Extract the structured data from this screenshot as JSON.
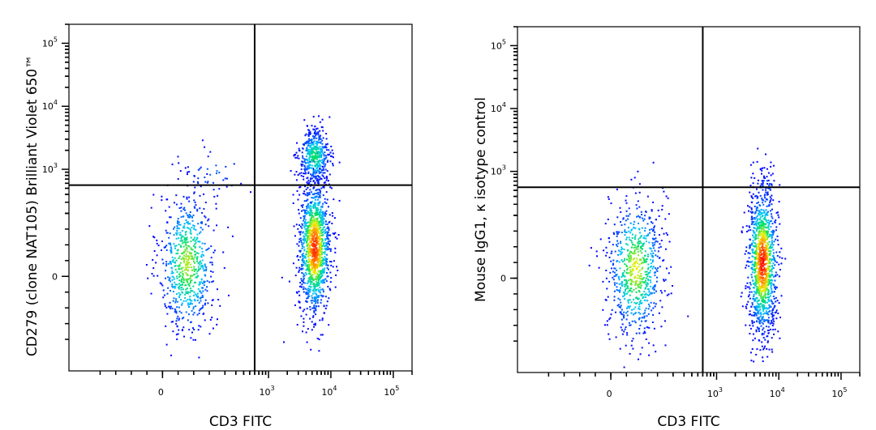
{
  "chart_data": [
    {
      "type": "scatter",
      "subtype": "flow-cytometry-density-dot-plot",
      "xlabel": "CD3 FITC",
      "ylabel": "CD279 (clone NAT105) Brilliant Violet 650™",
      "x_scale": "biexponential",
      "y_scale": "biexponential",
      "xlim": [
        -300,
        200000
      ],
      "ylim": [
        -300,
        200000
      ],
      "x_ticks": [
        {
          "value": 0,
          "base": "0",
          "exp": ""
        },
        {
          "value": 1000,
          "base": "10",
          "exp": "3"
        },
        {
          "value": 10000,
          "base": "10",
          "exp": "4"
        },
        {
          "value": 100000,
          "base": "10",
          "exp": "5"
        }
      ],
      "y_ticks": [
        {
          "value": 0,
          "base": "0",
          "exp": ""
        },
        {
          "value": 1000,
          "base": "10",
          "exp": "3"
        },
        {
          "value": 10000,
          "base": "10",
          "exp": "4"
        },
        {
          "value": 100000,
          "base": "10",
          "exp": "5"
        }
      ],
      "quadrant_gate": {
        "x": 600,
        "y": 560
      },
      "grid": false,
      "legend": "none",
      "color_scale": [
        "#0000ff",
        "#00c8ff",
        "#00e060",
        "#f0f000",
        "#ff8000",
        "#ff0000"
      ],
      "populations": [
        {
          "x_center": 80,
          "x_spread": 60,
          "y_center": 40,
          "y_spread": 150,
          "count": 700,
          "peak": 0.55
        },
        {
          "x_center": 5500,
          "x_spread": 2600,
          "y_center": 90,
          "y_spread": 200,
          "count": 1300,
          "peak": 0.95
        },
        {
          "x_center": 5500,
          "x_spread": 2600,
          "y_center": 1600,
          "y_spread": 1600,
          "count": 450,
          "peak": 0.4
        },
        {
          "x_center": 160,
          "x_spread": 120,
          "y_center": 900,
          "y_spread": 800,
          "count": 45,
          "peak": 0.1
        }
      ]
    },
    {
      "type": "scatter",
      "subtype": "flow-cytometry-density-dot-plot",
      "xlabel": "CD3 FITC",
      "ylabel": "Mouse IgG1, κ isotype control",
      "x_scale": "biexponential",
      "y_scale": "biexponential",
      "xlim": [
        -300,
        200000
      ],
      "ylim": [
        -300,
        200000
      ],
      "x_ticks": [
        {
          "value": 0,
          "base": "0",
          "exp": ""
        },
        {
          "value": 1000,
          "base": "10",
          "exp": "3"
        },
        {
          "value": 10000,
          "base": "10",
          "exp": "4"
        },
        {
          "value": 100000,
          "base": "10",
          "exp": "5"
        }
      ],
      "y_ticks": [
        {
          "value": 0,
          "base": "0",
          "exp": ""
        },
        {
          "value": 1000,
          "base": "10",
          "exp": "3"
        },
        {
          "value": 10000,
          "base": "10",
          "exp": "4"
        },
        {
          "value": 100000,
          "base": "10",
          "exp": "5"
        }
      ],
      "quadrant_gate": {
        "x": 600,
        "y": 560
      },
      "grid": false,
      "legend": "none",
      "color_scale": [
        "#0000ff",
        "#00c8ff",
        "#00e060",
        "#f0f000",
        "#ff8000",
        "#ff0000"
      ],
      "populations": [
        {
          "x_center": 80,
          "x_spread": 60,
          "y_center": 30,
          "y_spread": 150,
          "count": 750,
          "peak": 0.6
        },
        {
          "x_center": 5500,
          "x_spread": 2400,
          "y_center": 50,
          "y_spread": 160,
          "count": 1250,
          "peak": 1.0
        },
        {
          "x_center": 6500,
          "x_spread": 2000,
          "y_center": 600,
          "y_spread": 300,
          "count": 25,
          "peak": 0.1
        }
      ]
    }
  ]
}
